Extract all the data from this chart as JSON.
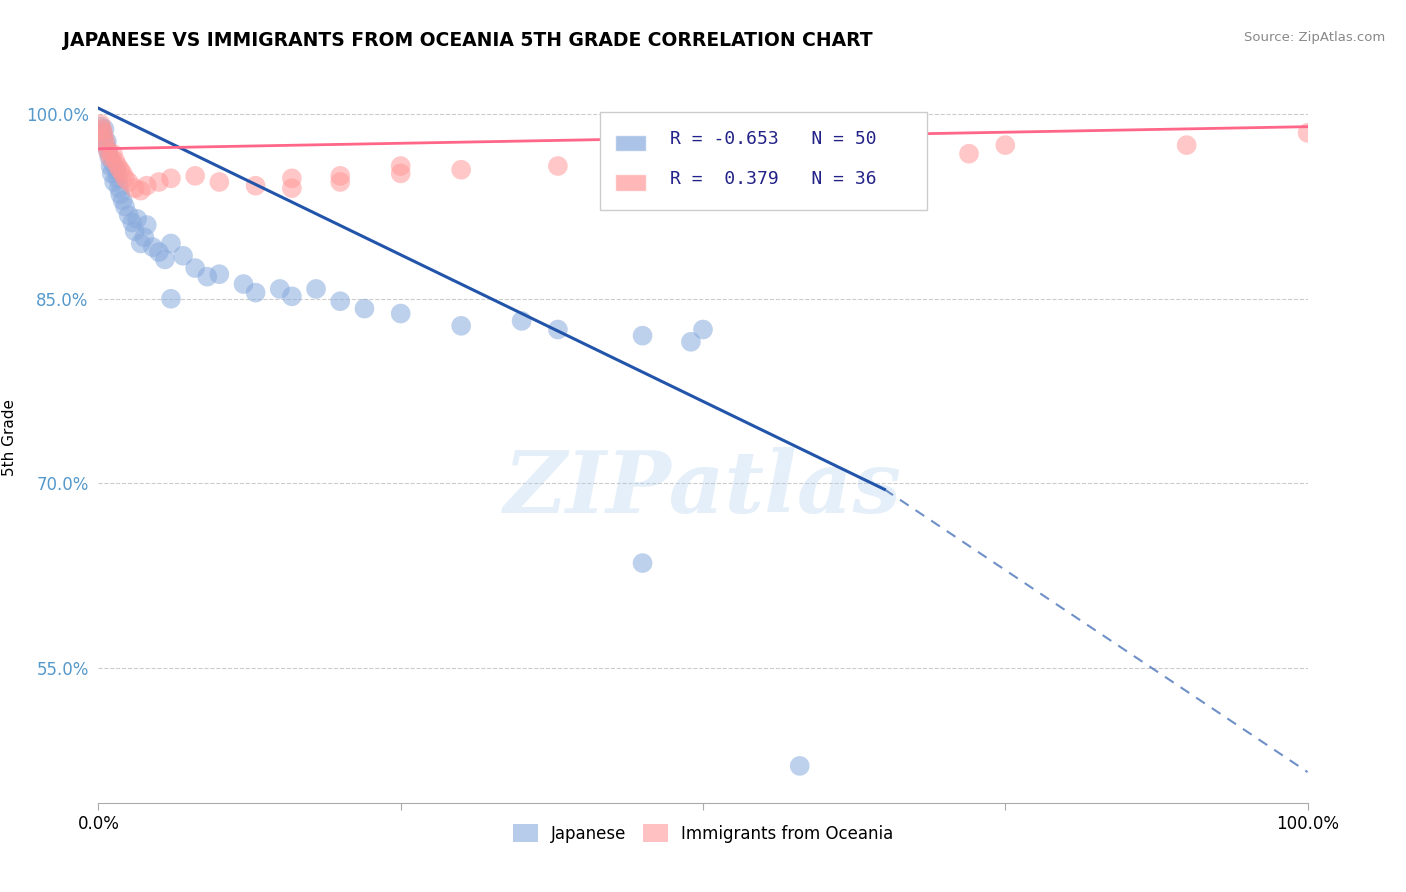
{
  "title": "JAPANESE VS IMMIGRANTS FROM OCEANIA 5TH GRADE CORRELATION CHART",
  "source_text": "Source: ZipAtlas.com",
  "ylabel": "5th Grade",
  "xlim": [
    0.0,
    1.0
  ],
  "ylim": [
    0.44,
    1.035
  ],
  "yticks": [
    0.55,
    0.7,
    0.85,
    1.0
  ],
  "ytick_labels": [
    "55.0%",
    "70.0%",
    "85.0%",
    "100.0%"
  ],
  "xticks": [
    0.0,
    0.25,
    0.5,
    0.75,
    1.0
  ],
  "xtick_labels": [
    "0.0%",
    "",
    "",
    "",
    "100.0%"
  ],
  "legend_labels": [
    "Japanese",
    "Immigrants from Oceania"
  ],
  "blue_R": "-0.653",
  "blue_N": "50",
  "pink_R": "0.379",
  "pink_N": "36",
  "blue_color": "#88AADD",
  "pink_color": "#FF9999",
  "blue_line_color": "#2255AA",
  "pink_line_color": "#FF6688",
  "watermark": "ZIPatlas",
  "blue_line_x0": 0.0,
  "blue_line_y0": 1.005,
  "blue_line_x1": 0.65,
  "blue_line_y1": 0.695,
  "blue_line_solid_end": 0.65,
  "blue_line_dash_end": 1.0,
  "blue_line_y_dash_end": 0.465,
  "pink_line_x0": 0.0,
  "pink_line_y0": 0.972,
  "pink_line_x1": 1.0,
  "pink_line_y1": 0.99,
  "blue_scatter_x": [
    0.002,
    0.003,
    0.004,
    0.005,
    0.006,
    0.007,
    0.008,
    0.009,
    0.01,
    0.011,
    0.012,
    0.013,
    0.015,
    0.016,
    0.017,
    0.018,
    0.02,
    0.022,
    0.025,
    0.028,
    0.03,
    0.032,
    0.035,
    0.038,
    0.04,
    0.045,
    0.05,
    0.055,
    0.06,
    0.07,
    0.08,
    0.09,
    0.1,
    0.12,
    0.13,
    0.15,
    0.16,
    0.18,
    0.2,
    0.22,
    0.25,
    0.3,
    0.35,
    0.38,
    0.45,
    0.49,
    0.06,
    0.45,
    0.5,
    0.58
  ],
  "blue_scatter_y": [
    0.99,
    0.985,
    0.982,
    0.988,
    0.975,
    0.978,
    0.97,
    0.965,
    0.958,
    0.952,
    0.96,
    0.945,
    0.955,
    0.948,
    0.94,
    0.935,
    0.93,
    0.925,
    0.918,
    0.912,
    0.905,
    0.915,
    0.895,
    0.9,
    0.91,
    0.892,
    0.888,
    0.882,
    0.895,
    0.885,
    0.875,
    0.868,
    0.87,
    0.862,
    0.855,
    0.858,
    0.852,
    0.858,
    0.848,
    0.842,
    0.838,
    0.828,
    0.832,
    0.825,
    0.82,
    0.815,
    0.85,
    0.635,
    0.825,
    0.47
  ],
  "pink_scatter_x": [
    0.002,
    0.003,
    0.004,
    0.005,
    0.006,
    0.008,
    0.01,
    0.012,
    0.014,
    0.016,
    0.018,
    0.02,
    0.022,
    0.025,
    0.03,
    0.035,
    0.04,
    0.05,
    0.06,
    0.08,
    0.1,
    0.13,
    0.16,
    0.2,
    0.25,
    0.3,
    0.38,
    0.16,
    0.2,
    0.25,
    0.55,
    0.65,
    0.72,
    0.75,
    0.9,
    1.0
  ],
  "pink_scatter_y": [
    0.992,
    0.988,
    0.985,
    0.98,
    0.976,
    0.97,
    0.965,
    0.968,
    0.962,
    0.958,
    0.955,
    0.952,
    0.948,
    0.945,
    0.94,
    0.938,
    0.942,
    0.945,
    0.948,
    0.95,
    0.945,
    0.942,
    0.948,
    0.95,
    0.952,
    0.955,
    0.958,
    0.94,
    0.945,
    0.958,
    0.96,
    0.965,
    0.968,
    0.975,
    0.975,
    0.985
  ]
}
